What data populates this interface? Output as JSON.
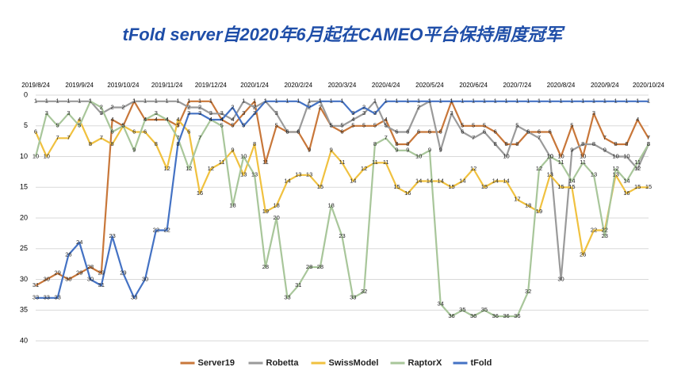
{
  "chart_data": {
    "type": "line",
    "title": "tFold server自2020年6月起在CAMEO平台保持周度冠军",
    "categories": [
      "2019/8/24",
      null,
      null,
      null,
      "2019/9/24",
      null,
      null,
      null,
      "2019/10/24",
      null,
      null,
      null,
      "2019/11/24",
      null,
      null,
      null,
      "2019/12/24",
      null,
      null,
      null,
      "2020/1/24",
      null,
      null,
      null,
      "2020/2/24",
      null,
      null,
      null,
      "2020/3/24",
      null,
      null,
      null,
      "2020/4/24",
      null,
      null,
      null,
      "2020/5/24",
      null,
      null,
      null,
      "2020/6/24",
      null,
      null,
      null,
      "2020/7/24",
      null,
      null,
      null,
      "2020/8/24",
      null,
      null,
      null,
      "2020/9/24",
      null,
      null,
      null,
      "2020/10/24"
    ],
    "series": [
      {
        "name": "Server19",
        "color": "#c8773a",
        "values": [
          31,
          30,
          29,
          30,
          29,
          28,
          29,
          4,
          5,
          1,
          4,
          4,
          4,
          5,
          1,
          1,
          1,
          4,
          5,
          3,
          1,
          11,
          5,
          6,
          6,
          9,
          2,
          5,
          6,
          5,
          5,
          5,
          4,
          8,
          8,
          6,
          6,
          6,
          1,
          5,
          5,
          5,
          6,
          8,
          8,
          6,
          6,
          6,
          10,
          5,
          10,
          3,
          7,
          8,
          8,
          4,
          7
        ]
      },
      {
        "name": "Robetta",
        "color": "#9a9a9a",
        "values": [
          1,
          1,
          1,
          1,
          1,
          1,
          3,
          2,
          2,
          1,
          1,
          1,
          1,
          1,
          2,
          2,
          3,
          3,
          4,
          1,
          2,
          1,
          3,
          6,
          6,
          1,
          1,
          5,
          5,
          4,
          3,
          1,
          5,
          6,
          6,
          2,
          1,
          9,
          3,
          6,
          7,
          6,
          8,
          10,
          5,
          6,
          7,
          10,
          30,
          9,
          8,
          8,
          9,
          10,
          10,
          12,
          8
        ]
      },
      {
        "name": "SwissModel",
        "color": "#f0c13f",
        "values": [
          6,
          10,
          7,
          7,
          4,
          8,
          7,
          8,
          5,
          6,
          6,
          8,
          12,
          4,
          6,
          16,
          12,
          11,
          9,
          13,
          8,
          19,
          18,
          14,
          13,
          13,
          15,
          9,
          11,
          14,
          12,
          11,
          11,
          15,
          16,
          14,
          14,
          14,
          15,
          14,
          12,
          15,
          14,
          14,
          17,
          18,
          19,
          13,
          15,
          15,
          26,
          22,
          22,
          13,
          16,
          15,
          15
        ]
      },
      {
        "name": "RaptorX",
        "color": "#a8c69a",
        "values": [
          10,
          3,
          5,
          3,
          5,
          1,
          2,
          6,
          5,
          9,
          4,
          3,
          4,
          7,
          12,
          7,
          4,
          5,
          18,
          10,
          13,
          28,
          20,
          33,
          31,
          28,
          28,
          18,
          23,
          33,
          32,
          8,
          7,
          9,
          9,
          10,
          9,
          34,
          36,
          35,
          36,
          35,
          36,
          36,
          36,
          32,
          12,
          10,
          11,
          14,
          11,
          13,
          23,
          12,
          14,
          11,
          8
        ]
      },
      {
        "name": "tFold",
        "color": "#4472c4",
        "values": [
          33,
          33,
          33,
          26,
          24,
          30,
          31,
          23,
          29,
          33,
          30,
          22,
          22,
          8,
          3,
          3,
          4,
          4,
          2,
          5,
          3,
          1,
          1,
          1,
          1,
          2,
          1,
          1,
          1,
          3,
          2,
          3,
          1,
          1,
          1,
          1,
          1,
          1,
          1,
          1,
          1,
          1,
          1,
          1,
          1,
          1,
          1,
          1,
          1,
          1,
          1,
          1,
          1,
          1,
          1,
          1,
          1
        ]
      }
    ],
    "ylim": [
      0,
      40
    ],
    "yticks": [
      0,
      5,
      10,
      15,
      20,
      25,
      30,
      35,
      40
    ],
    "y_inverted": true,
    "grid": true,
    "legend": "bottom"
  }
}
